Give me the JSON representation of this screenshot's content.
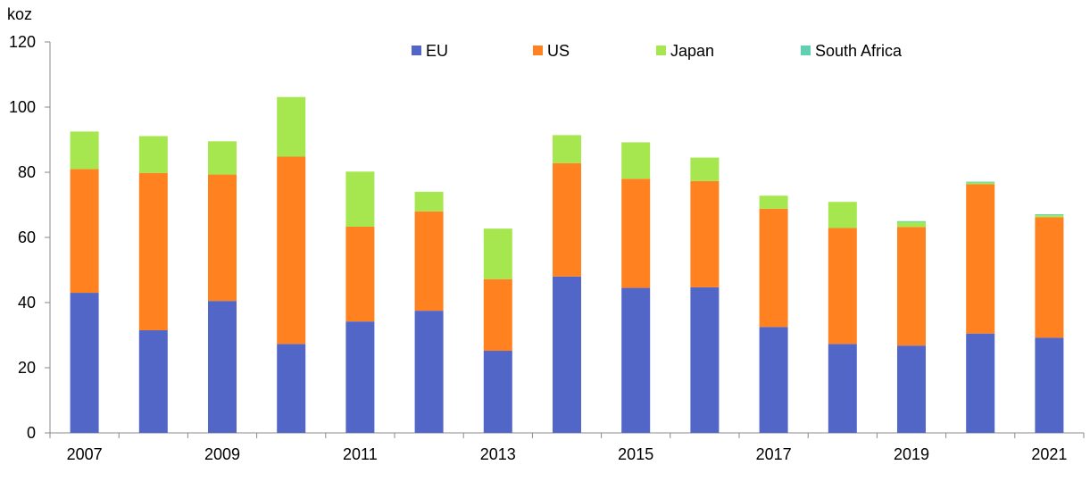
{
  "chart_data": {
    "type": "bar",
    "stacked": true,
    "ylabel": "koz",
    "ylim": [
      0,
      120
    ],
    "yticks": [
      0,
      20,
      40,
      60,
      80,
      100,
      120
    ],
    "grid": false,
    "legend_position": "top",
    "categories": [
      "2007",
      "2008",
      "2009",
      "2010",
      "2011",
      "2012",
      "2013",
      "2014",
      "2015",
      "2016",
      "2017",
      "2018",
      "2019",
      "2020",
      "2021"
    ],
    "x_tick_labels": [
      "2007",
      "",
      "2009",
      "",
      "2011",
      "",
      "2013",
      "",
      "2015",
      "",
      "2017",
      "",
      "2019",
      "",
      "2021"
    ],
    "series": [
      {
        "name": "EU",
        "color": "#5266c8",
        "values": [
          43,
          31.5,
          40.5,
          27.3,
          34.2,
          37.5,
          25.2,
          48,
          44.5,
          44.7,
          32.5,
          27.3,
          26.8,
          30.5,
          29.2
        ]
      },
      {
        "name": "US",
        "color": "#ff8120",
        "values": [
          38,
          48.3,
          38.8,
          57.5,
          29.1,
          30.5,
          22,
          34.8,
          33.5,
          32.6,
          36.3,
          35.6,
          36.4,
          45.8,
          37
        ]
      },
      {
        "name": "Japan",
        "color": "#a6e64e",
        "values": [
          11.5,
          11.3,
          10.2,
          18.3,
          16.9,
          6,
          15.5,
          8.6,
          11.2,
          7.2,
          4,
          8,
          1.5,
          0.5,
          0.6
        ]
      },
      {
        "name": "South Africa",
        "color": "#5fd1b0",
        "values": [
          0,
          0,
          0,
          0,
          0,
          0,
          0,
          0,
          0,
          0,
          0,
          0,
          0.3,
          0.3,
          0.3
        ]
      }
    ]
  }
}
